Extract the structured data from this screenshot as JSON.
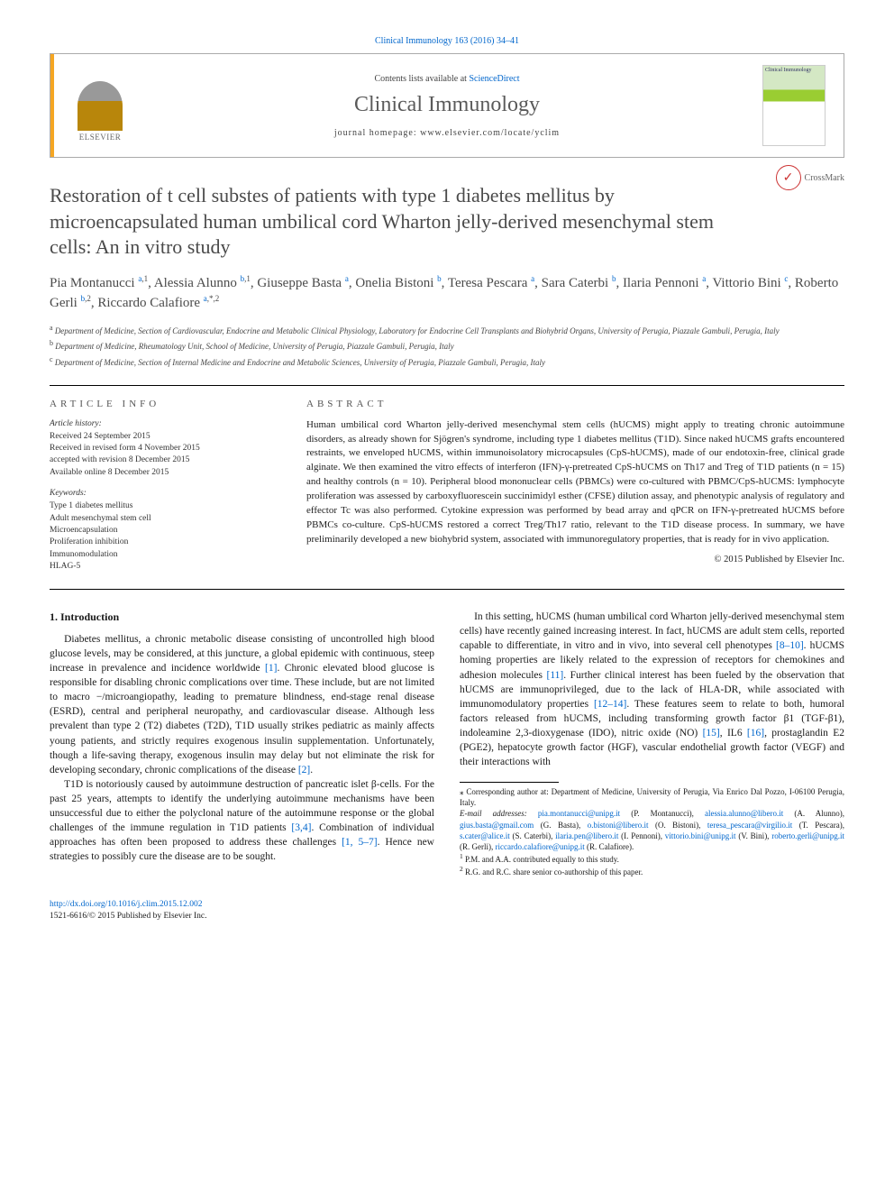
{
  "top_citation": "Clinical Immunology 163 (2016) 34–41",
  "header": {
    "contents_prefix": "Contents lists available at ",
    "contents_link": "ScienceDirect",
    "journal": "Clinical Immunology",
    "homepage_prefix": "journal homepage: ",
    "homepage_url": "www.elsevier.com/locate/yclim",
    "publisher": "ELSEVIER",
    "cover_text": "Clinical Immunology"
  },
  "crossmark": "CrossMark",
  "title": "Restoration of t cell substes of patients with type 1 diabetes mellitus by microencapsulated human umbilical cord Wharton jelly-derived mesenchymal stem cells: An in vitro study",
  "authors_html": "Pia Montanucci <sup><a href='#'>a</a>,1</sup>, Alessia Alunno <sup><a href='#'>b</a>,1</sup>, Giuseppe Basta <sup><a href='#'>a</a></sup>, Onelia Bistoni <sup><a href='#'>b</a></sup>, Teresa Pescara <sup><a href='#'>a</a></sup>, Sara Caterbi <sup><a href='#'>b</a></sup>, Ilaria Pennoni <sup><a href='#'>a</a></sup>, Vittorio Bini <sup><a href='#'>c</a></sup>, Roberto Gerli <sup><a href='#'>b</a>,2</sup>, Riccardo Calafiore <sup><a href='#'>a</a>,*,2</sup>",
  "affiliations": [
    {
      "sup": "a",
      "text": "Department of Medicine, Section of Cardiovascular, Endocrine and Metabolic Clinical Physiology, Laboratory for Endocrine Cell Transplants and Biohybrid Organs, University of Perugia, Piazzale Gambuli, Perugia, Italy"
    },
    {
      "sup": "b",
      "text": "Department of Medicine, Rheumatology Unit, School of Medicine, University of Perugia, Piazzale Gambuli, Perugia, Italy"
    },
    {
      "sup": "c",
      "text": "Department of Medicine, Section of Internal Medicine and Endocrine and Metabolic Sciences, University of Perugia, Piazzale Gambuli, Perugia, Italy"
    }
  ],
  "article_info": {
    "label": "article info",
    "history_label": "Article history:",
    "history": [
      "Received 24 September 2015",
      "Received in revised form 4 November 2015",
      "accepted with revision 8 December 2015",
      "Available online 8 December 2015"
    ],
    "kw_label": "Keywords:",
    "keywords": [
      "Type 1 diabetes mellitus",
      "Adult mesenchymal stem cell",
      "Microencapsulation",
      "Proliferation inhibition",
      "Immunomodulation",
      "HLAG-5"
    ]
  },
  "abstract": {
    "label": "abstract",
    "text": "Human umbilical cord Wharton jelly-derived mesenchymal stem cells (hUCMS) might apply to treating chronic autoimmune disorders, as already shown for Sjögren's syndrome, including type 1 diabetes mellitus (T1D). Since naked hUCMS grafts encountered restraints, we enveloped hUCMS, within immunoisolatory microcapsules (CpS-hUCMS), made of our endotoxin-free, clinical grade alginate. We then examined the vitro effects of interferon (IFN)-γ-pretreated CpS-hUCMS on Th17 and Treg of T1D patients (n = 15) and healthy controls (n = 10). Peripheral blood mononuclear cells (PBMCs) were co-cultured with PBMC/CpS-hUCMS: lymphocyte proliferation was assessed by carboxyfluorescein succinimidyl esther (CFSE) dilution assay, and phenotypic analysis of regulatory and effector Tc was also performed. Cytokine expression was performed by bead array and qPCR on IFN-γ-pretreated hUCMS before PBMCs co-culture. CpS-hUCMS restored a correct Treg/Th17 ratio, relevant to the T1D disease process. In summary, we have preliminarily developed a new biohybrid system, associated with immunoregulatory properties, that is ready for in vivo application.",
    "copyright": "© 2015 Published by Elsevier Inc."
  },
  "intro": {
    "heading": "1. Introduction",
    "p1_pre": "Diabetes mellitus, a chronic metabolic disease consisting of uncontrolled high blood glucose levels, may be considered, at this juncture, a global epidemic with continuous, steep increase in prevalence and incidence worldwide ",
    "p1_ref1": "[1]",
    "p1_post": ". Chronic elevated blood glucose is responsible for disabling chronic complications over time. These include, but are not limited to macro −/microangiopathy, leading to premature blindness, end-stage renal disease (ESRD), central and peripheral neuropathy, and cardiovascular disease. Although less prevalent than type 2 (T2) diabetes (T2D), T1D usually strikes pediatric as mainly affects young patients, and strictly requires exogenous insulin supplementation. Unfortunately, though a life-saving therapy, exogenous insulin may delay but not eliminate the risk for developing secondary, chronic complications of the disease ",
    "p1_ref2": "[2]",
    "p1_end": ".",
    "p2_pre": "T1D is notoriously caused by autoimmune destruction of pancreatic islet β-cells. For the past 25 years, attempts to identify the underlying autoimmune mechanisms have been unsuccessful due to either the polyclonal nature of the autoimmune response or the global challenges of the immune regulation in T1D patients ",
    "p2_ref1": "[3,4]",
    "p2_mid": ". Combination of individual approaches has often been proposed to address these challenges ",
    "p2_ref2": "[1, 5–7]",
    "p2_post": ". Hence new strategies to possibly cure the disease are to be sought.",
    "p3_pre": "In this setting, hUCMS (human umbilical cord Wharton jelly-derived mesenchymal stem cells) have recently gained increasing interest. In fact, hUCMS are adult stem cells, reported capable to differentiate, in vitro and in vivo, into several cell phenotypes ",
    "p3_ref1": "[8–10]",
    "p3_mid1": ". hUCMS homing properties are likely related to the expression of receptors for chemokines and adhesion molecules ",
    "p3_ref2": "[11]",
    "p3_mid2": ". Further clinical interest has been fueled by the observation that hUCMS are immunoprivileged, due to the lack of HLA-DR, while associated with immunomodulatory properties ",
    "p3_ref3": "[12–14]",
    "p3_mid3": ". These features seem to relate to both, humoral factors released from hUCMS, including transforming growth factor β1 (TGF-β1), indoleamine 2,3-dioxygenase (IDO), nitric oxide (NO) ",
    "p3_ref4": "[15]",
    "p3_mid4": ", IL6 ",
    "p3_ref5": "[16]",
    "p3_post": ", prostaglandin E2 (PGE2), hepatocyte growth factor (HGF), vascular endothelial growth factor (VEGF) and their interactions with"
  },
  "footnotes": {
    "corr": "⁎ Corresponding author at: Department of Medicine, University of Perugia, Via Enrico Dal Pozzo, I-06100 Perugia, Italy.",
    "email_label": "E-mail addresses:",
    "emails": [
      {
        "addr": "pia.montanucci@unipg.it",
        "who": "(P. Montanucci)"
      },
      {
        "addr": "alessia.alunno@libero.it",
        "who": "(A. Alunno)"
      },
      {
        "addr": "gius.basta@gmail.com",
        "who": "(G. Basta)"
      },
      {
        "addr": "o.bistoni@libero.it",
        "who": "(O. Bistoni)"
      },
      {
        "addr": "teresa_pescara@virgilio.it",
        "who": "(T. Pescara)"
      },
      {
        "addr": "s.cater@alice.it",
        "who": "(S. Caterbi)"
      },
      {
        "addr": "ilaria.pen@libero.it",
        "who": "(I. Pennoni)"
      },
      {
        "addr": "vittorio.bini@unipg.it",
        "who": "(V. Bini)"
      },
      {
        "addr": "roberto.gerli@unipg.it",
        "who": "(R. Gerli)"
      },
      {
        "addr": "riccardo.calafiore@unipg.it",
        "who": "(R. Calafiore)"
      }
    ],
    "n1": "P.M. and A.A. contributed equally to this study.",
    "n2": "R.G. and R.C. share senior co-authorship of this paper."
  },
  "doi": {
    "url": "http://dx.doi.org/10.1016/j.clim.2015.12.002",
    "issn_line": "1521-6616/© 2015 Published by Elsevier Inc."
  },
  "colors": {
    "link": "#0066cc",
    "accent": "#f5a623",
    "text_gray": "#4a4a4a"
  }
}
